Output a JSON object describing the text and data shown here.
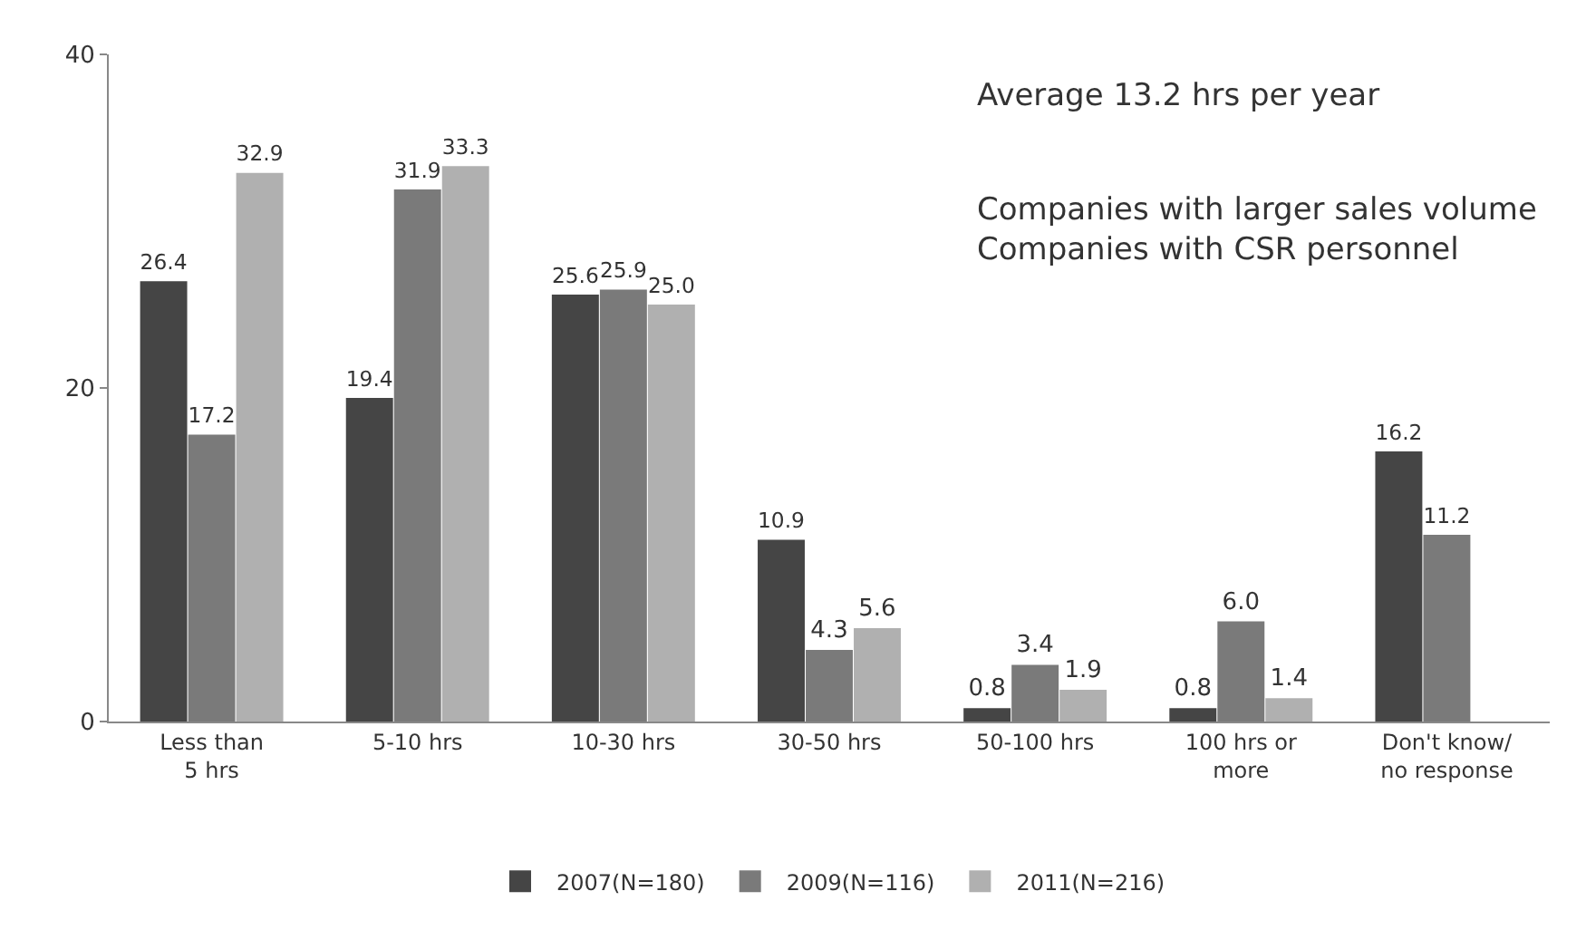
{
  "chart_data": {
    "type": "bar",
    "categories": [
      "Less than\n5 hrs",
      "5-10 hrs",
      "10-30 hrs",
      "30-50 hrs",
      "50-100 hrs",
      "100 hrs or\nmore",
      "Don't know/\nno response"
    ],
    "series": [
      {
        "name": "2007(N=180)",
        "color": "#454545",
        "values": [
          26.4,
          19.4,
          25.6,
          10.9,
          0.8,
          0.8,
          16.2
        ],
        "value_labels": [
          "26.4",
          "19.4",
          "25.6",
          "10.9",
          "0.8",
          "0.8",
          "16.2"
        ]
      },
      {
        "name": "2009(N=116)",
        "color": "#7a7a7a",
        "values": [
          17.2,
          31.9,
          25.9,
          4.3,
          3.4,
          6.0,
          11.2
        ],
        "value_labels": [
          "17.2",
          "31.9",
          "25.9",
          "4.3",
          "3.4",
          "6.0",
          "11.2"
        ]
      },
      {
        "name": "2011(N=216)",
        "color": "#b0b0b0",
        "values": [
          32.9,
          33.3,
          25.0,
          5.6,
          1.9,
          1.4,
          null
        ],
        "value_labels": [
          "32.9",
          "33.3",
          "25.0",
          "5.6",
          "1.9",
          "1.4",
          null
        ]
      }
    ],
    "ylim": [
      0,
      40
    ],
    "yticks": [
      0,
      20,
      40
    ],
    "legend": "bottom",
    "annotations": [
      "Average 13.2 hrs per year",
      "Companies with larger sales volume\nCompanies with CSR personnel"
    ]
  }
}
